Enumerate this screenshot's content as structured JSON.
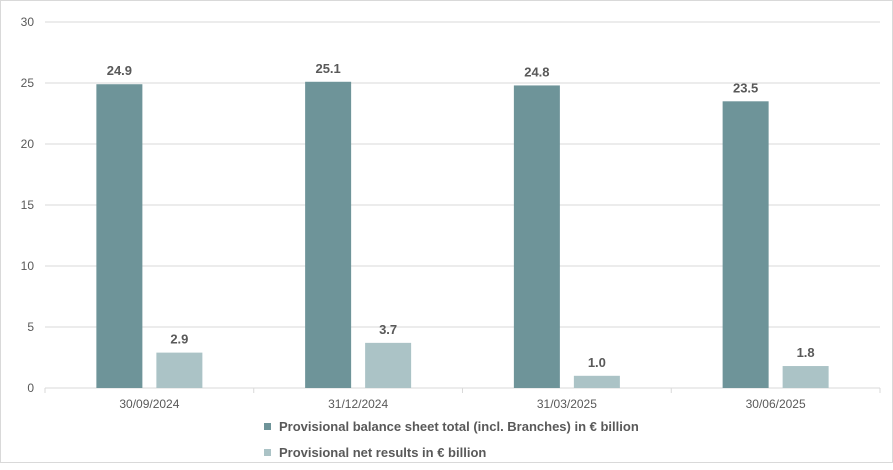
{
  "colors": {
    "series1": "#6e9499",
    "series2": "#abc3c6",
    "grid": "#d9d9d9",
    "text": "#595959"
  },
  "chart_data": {
    "type": "bar",
    "categories": [
      "30/09/2024",
      "31/12/2024",
      "31/03/2025",
      "30/06/2025"
    ],
    "series": [
      {
        "name": "Provisional balance sheet total (incl. Branches) in € billion",
        "values": [
          24.9,
          25.1,
          24.8,
          23.5
        ],
        "labels": [
          "24.9",
          "25.1",
          "24.8",
          "23.5"
        ]
      },
      {
        "name": "Provisional net results in € billion",
        "values": [
          2.9,
          3.7,
          1.0,
          1.8
        ],
        "labels": [
          "2.9",
          "3.7",
          "1.0",
          "1.8"
        ]
      }
    ],
    "ylim": [
      0,
      30
    ],
    "yticks": [
      0,
      5,
      10,
      15,
      20,
      25,
      30
    ],
    "grid": true,
    "legend": "bottom"
  }
}
